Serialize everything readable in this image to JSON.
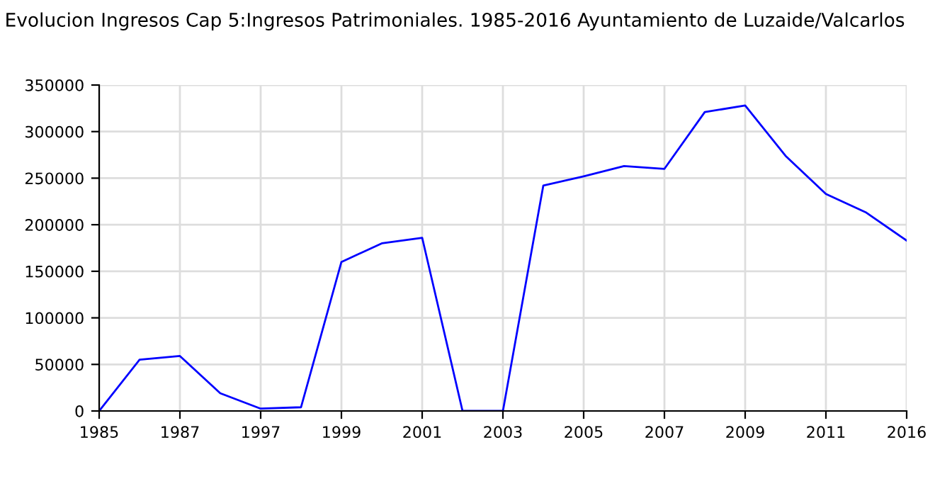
{
  "chart_data": {
    "type": "line",
    "title": "Evolucion Ingresos Cap 5:Ingresos Patrimoniales. 1985-2016 Ayuntamiento de Luzaide/Valcarlos",
    "categories": [
      "1985",
      null,
      "1987",
      null,
      "1997",
      null,
      "1999",
      null,
      "2001",
      null,
      "2003",
      null,
      "2005",
      null,
      "2007",
      null,
      "2009",
      null,
      "2011",
      null,
      "2016"
    ],
    "series": [
      {
        "color": "#0000ff",
        "values": [
          0,
          55000,
          59000,
          19000,
          2500,
          4000,
          160000,
          180000,
          186000,
          0,
          0,
          242000,
          252000,
          263000,
          260000,
          321000,
          328000,
          274000,
          233000,
          213000,
          183000
        ]
      }
    ],
    "ylim": [
      0,
      350000
    ],
    "yticks": [
      0,
      50000,
      100000,
      150000,
      200000,
      250000,
      300000,
      350000
    ],
    "grid": true,
    "marker": "none",
    "line_style": "solid"
  }
}
